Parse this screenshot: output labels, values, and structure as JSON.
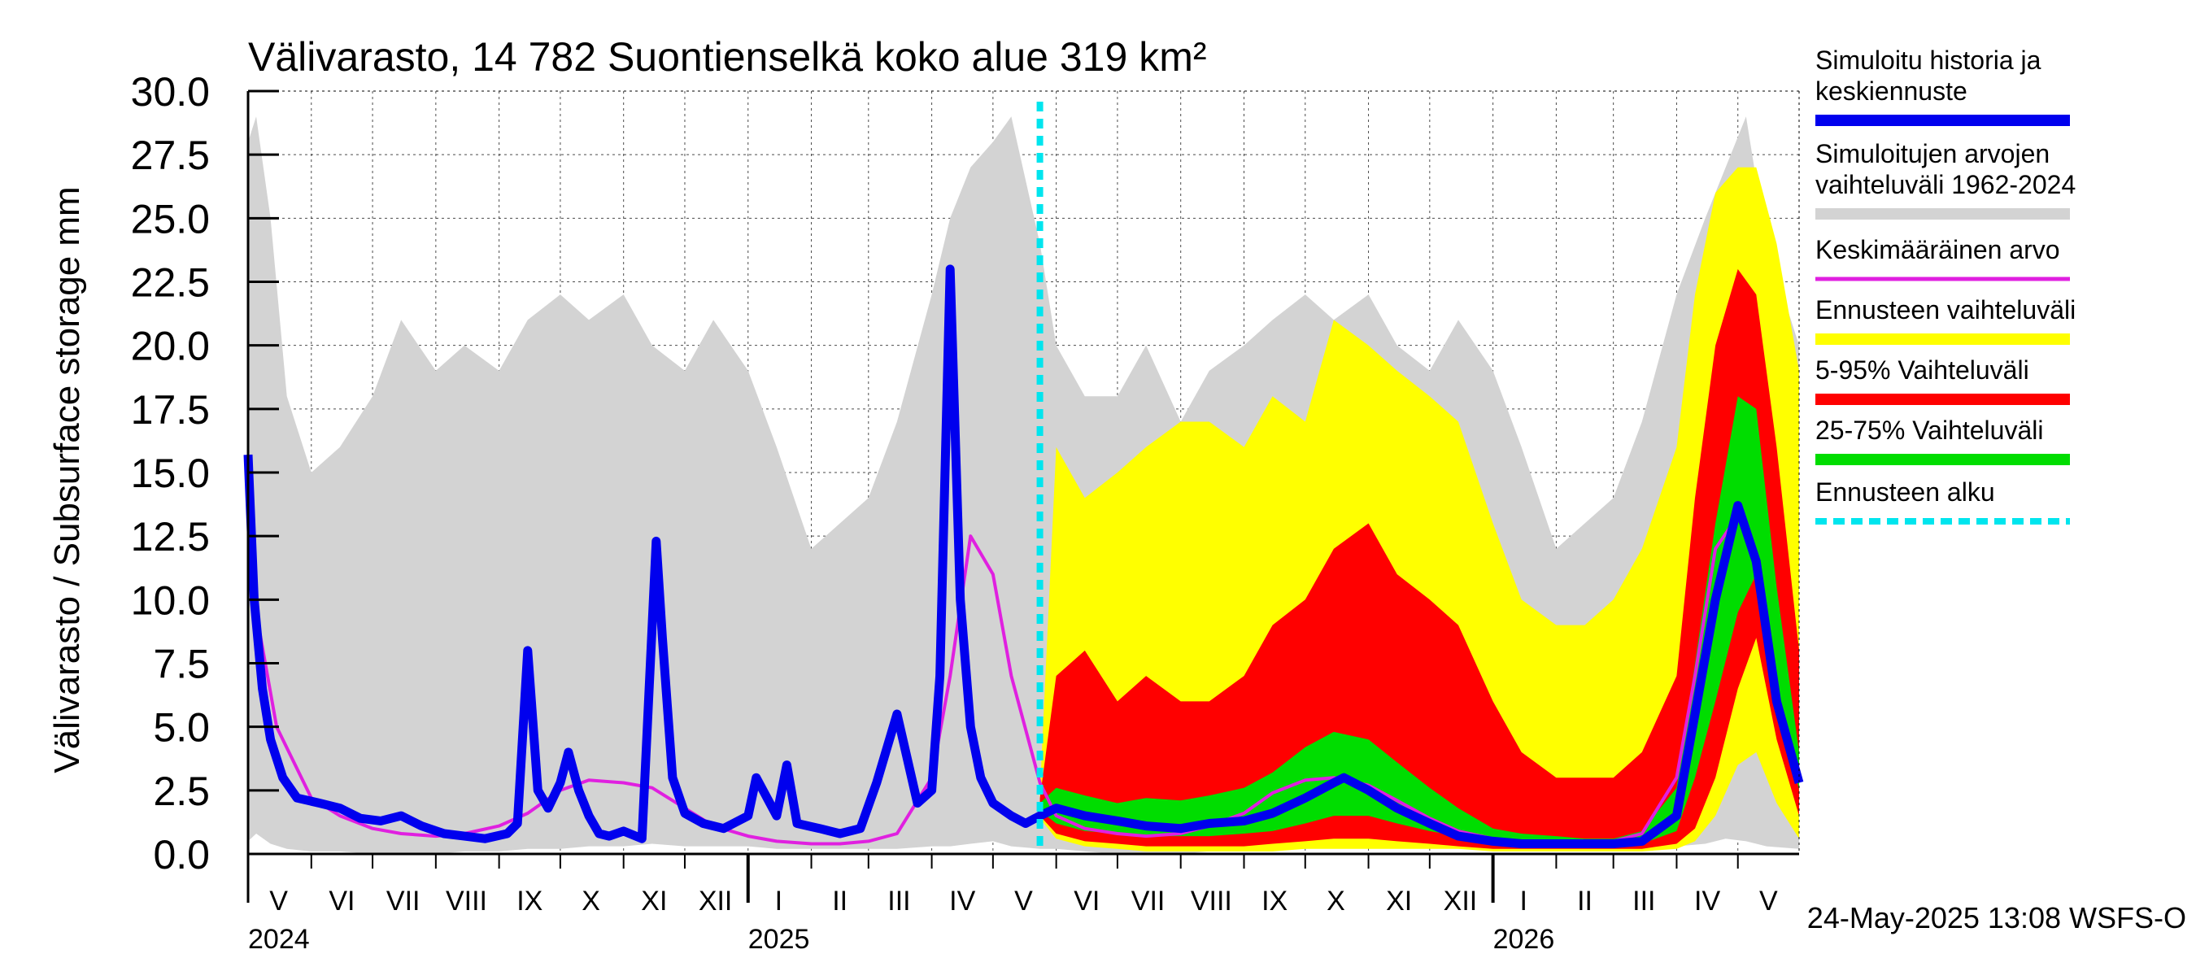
{
  "chart_data": {
    "type": "area",
    "title": "Välivarasto, 14 782 Suontienselkä koko alue 319 km²",
    "ylabel": "Välivarasto / Subsurface storage  mm",
    "xlabel": "",
    "ylim": [
      0,
      30
    ],
    "yticks": [
      "0.0",
      "2.5",
      "5.0",
      "7.5",
      "10.0",
      "12.5",
      "15.0",
      "17.5",
      "20.0",
      "22.5",
      "25.0",
      "27.5",
      "30.0"
    ],
    "grid": true,
    "legend_position": "right",
    "x_range": [
      "2024-05-01",
      "2026-05-31"
    ],
    "forecast_start": "2025-05-24",
    "month_labels": [
      {
        "date": "2024-05-16",
        "label": "V"
      },
      {
        "date": "2024-06-16",
        "label": "VI"
      },
      {
        "date": "2024-07-16",
        "label": "VII"
      },
      {
        "date": "2024-08-16",
        "label": "VIII"
      },
      {
        "date": "2024-09-16",
        "label": "IX"
      },
      {
        "date": "2024-10-16",
        "label": "X"
      },
      {
        "date": "2024-11-16",
        "label": "XI"
      },
      {
        "date": "2024-12-16",
        "label": "XII"
      },
      {
        "date": "2025-01-16",
        "label": "I"
      },
      {
        "date": "2025-02-15",
        "label": "II"
      },
      {
        "date": "2025-03-16",
        "label": "III"
      },
      {
        "date": "2025-04-16",
        "label": "IV"
      },
      {
        "date": "2025-05-16",
        "label": "V"
      },
      {
        "date": "2025-06-16",
        "label": "VI"
      },
      {
        "date": "2025-07-16",
        "label": "VII"
      },
      {
        "date": "2025-08-16",
        "label": "VIII"
      },
      {
        "date": "2025-09-16",
        "label": "IX"
      },
      {
        "date": "2025-10-16",
        "label": "X"
      },
      {
        "date": "2025-11-16",
        "label": "XI"
      },
      {
        "date": "2025-12-16",
        "label": "XII"
      },
      {
        "date": "2026-01-16",
        "label": "I"
      },
      {
        "date": "2026-02-15",
        "label": "II"
      },
      {
        "date": "2026-03-16",
        "label": "III"
      },
      {
        "date": "2026-04-16",
        "label": "IV"
      },
      {
        "date": "2026-05-16",
        "label": "V"
      }
    ],
    "month_boundaries": [
      "2024-06-01",
      "2024-07-01",
      "2024-08-01",
      "2024-09-01",
      "2024-10-01",
      "2024-11-01",
      "2024-12-01",
      "2025-01-01",
      "2025-02-01",
      "2025-03-01",
      "2025-04-01",
      "2025-05-01",
      "2025-06-01",
      "2025-07-01",
      "2025-08-01",
      "2025-09-01",
      "2025-10-01",
      "2025-11-01",
      "2025-12-01",
      "2026-01-01",
      "2026-02-01",
      "2026-03-01",
      "2026-04-01",
      "2026-05-01"
    ],
    "year_labels": [
      {
        "date": "2024-05-01",
        "label": "2024"
      },
      {
        "date": "2025-01-01",
        "label": "2025"
      },
      {
        "date": "2026-01-01",
        "label": "2026"
      }
    ],
    "series": [
      {
        "name": "Simuloitujen arvojen vaihteluväli 1962-2024",
        "kind": "band",
        "color": "#d3d3d3",
        "x": [
          "2024-05-01",
          "2024-05-05",
          "2024-05-12",
          "2024-05-20",
          "2024-06-01",
          "2024-06-15",
          "2024-07-01",
          "2024-07-15",
          "2024-08-01",
          "2024-08-15",
          "2024-09-01",
          "2024-09-15",
          "2024-10-01",
          "2024-10-15",
          "2024-11-01",
          "2024-11-15",
          "2024-12-01",
          "2024-12-15",
          "2025-01-01",
          "2025-01-15",
          "2025-02-01",
          "2025-02-15",
          "2025-03-01",
          "2025-03-15",
          "2025-04-01",
          "2025-04-10",
          "2025-04-20",
          "2025-05-01",
          "2025-05-10",
          "2025-05-24",
          "2025-06-01",
          "2025-06-15",
          "2025-07-01",
          "2025-07-15",
          "2025-08-01",
          "2025-08-15",
          "2025-09-01",
          "2025-09-15",
          "2025-10-01",
          "2025-10-15",
          "2025-11-01",
          "2025-11-15",
          "2025-12-01",
          "2025-12-15",
          "2026-01-01",
          "2026-01-15",
          "2026-02-01",
          "2026-02-15",
          "2026-03-01",
          "2026-03-15",
          "2026-04-01",
          "2026-04-15",
          "2026-04-25",
          "2026-05-05",
          "2026-05-15",
          "2026-05-31"
        ],
        "low": [
          0.5,
          0.8,
          0.4,
          0.2,
          0.1,
          0.1,
          0.0,
          0.0,
          0.0,
          0.1,
          0.1,
          0.2,
          0.2,
          0.3,
          0.3,
          0.4,
          0.3,
          0.3,
          0.3,
          0.2,
          0.2,
          0.2,
          0.2,
          0.2,
          0.3,
          0.3,
          0.4,
          0.5,
          0.3,
          0.2,
          0.2,
          0.1,
          0.0,
          0.0,
          0.0,
          0.1,
          0.1,
          0.2,
          0.2,
          0.3,
          0.3,
          0.3,
          0.3,
          0.3,
          0.3,
          0.2,
          0.2,
          0.2,
          0.2,
          0.2,
          0.3,
          0.4,
          0.6,
          0.5,
          0.3,
          0.2
        ],
        "high": [
          28,
          29,
          25,
          18,
          15,
          16,
          18,
          21,
          19,
          20,
          19,
          21,
          22,
          21,
          22,
          20,
          19,
          21,
          19,
          16,
          12,
          13,
          14,
          17,
          22,
          25,
          27,
          28,
          29,
          24,
          20,
          18,
          18,
          20,
          17,
          19,
          20,
          21,
          22,
          21,
          22,
          20,
          19,
          21,
          19,
          16,
          12,
          13,
          14,
          17,
          22,
          25,
          27,
          29,
          24,
          20
        ]
      },
      {
        "name": "Ennusteen vaihteluväli",
        "kind": "band",
        "color": "#ffff00",
        "x": [
          "2025-05-24",
          "2025-06-01",
          "2025-06-15",
          "2025-07-01",
          "2025-07-15",
          "2025-08-01",
          "2025-08-15",
          "2025-09-01",
          "2025-09-15",
          "2025-10-01",
          "2025-10-15",
          "2025-11-01",
          "2025-11-15",
          "2025-12-01",
          "2025-12-15",
          "2026-01-01",
          "2026-01-15",
          "2026-02-01",
          "2026-02-15",
          "2026-03-01",
          "2026-03-15",
          "2026-04-01",
          "2026-04-10",
          "2026-04-20",
          "2026-05-01",
          "2026-05-10",
          "2026-05-20",
          "2026-05-31"
        ],
        "low": [
          1.4,
          0.6,
          0.3,
          0.2,
          0.1,
          0.1,
          0.1,
          0.1,
          0.1,
          0.2,
          0.2,
          0.2,
          0.2,
          0.2,
          0.2,
          0.1,
          0.1,
          0.1,
          0.1,
          0.1,
          0.1,
          0.2,
          0.5,
          1.5,
          3.5,
          4.0,
          2.0,
          0.6
        ],
        "high": [
          2.4,
          16,
          14,
          15,
          16,
          17,
          17,
          16,
          18,
          17,
          21,
          20,
          19,
          18,
          17,
          13,
          10,
          9,
          9,
          10,
          12,
          16,
          22,
          26,
          27,
          27,
          24,
          19
        ]
      },
      {
        "name": "5-95% Vaihteluväli",
        "kind": "band",
        "color": "#ff0000",
        "x": [
          "2025-05-24",
          "2025-06-01",
          "2025-06-15",
          "2025-07-01",
          "2025-07-15",
          "2025-08-01",
          "2025-08-15",
          "2025-09-01",
          "2025-09-15",
          "2025-10-01",
          "2025-10-15",
          "2025-11-01",
          "2025-11-15",
          "2025-12-01",
          "2025-12-15",
          "2026-01-01",
          "2026-01-15",
          "2026-02-01",
          "2026-02-15",
          "2026-03-01",
          "2026-03-15",
          "2026-04-01",
          "2026-04-10",
          "2026-04-20",
          "2026-05-01",
          "2026-05-10",
          "2026-05-20",
          "2026-05-31"
        ],
        "low": [
          1.5,
          0.8,
          0.5,
          0.4,
          0.3,
          0.3,
          0.3,
          0.3,
          0.4,
          0.5,
          0.6,
          0.6,
          0.5,
          0.4,
          0.3,
          0.2,
          0.2,
          0.2,
          0.2,
          0.2,
          0.2,
          0.4,
          1.0,
          3.0,
          6.5,
          8.5,
          4.5,
          1.5
        ],
        "high": [
          2.2,
          7,
          8,
          6,
          7,
          6,
          6,
          7,
          9,
          10,
          12,
          13,
          11,
          10,
          9,
          6,
          4,
          3,
          3,
          3,
          4,
          7,
          14,
          20,
          23,
          22,
          16,
          8
        ]
      },
      {
        "name": "25-75% Vaihteluväli",
        "kind": "band",
        "color": "#00dd00",
        "x": [
          "2025-05-24",
          "2025-06-01",
          "2025-06-15",
          "2025-07-01",
          "2025-07-15",
          "2025-08-01",
          "2025-08-15",
          "2025-09-01",
          "2025-09-15",
          "2025-10-01",
          "2025-10-15",
          "2025-11-01",
          "2025-11-15",
          "2025-12-01",
          "2025-12-15",
          "2026-01-01",
          "2026-01-15",
          "2026-02-01",
          "2026-02-15",
          "2026-03-01",
          "2026-03-15",
          "2026-04-01",
          "2026-04-10",
          "2026-04-20",
          "2026-05-01",
          "2026-05-10",
          "2026-05-20",
          "2026-05-31"
        ],
        "low": [
          1.7,
          1.2,
          0.9,
          0.8,
          0.7,
          0.7,
          0.7,
          0.8,
          0.9,
          1.2,
          1.5,
          1.5,
          1.2,
          0.9,
          0.7,
          0.5,
          0.4,
          0.4,
          0.3,
          0.3,
          0.4,
          0.9,
          3.0,
          6.0,
          9.5,
          11.0,
          6.5,
          2.5
        ],
        "high": [
          2.0,
          2.6,
          2.3,
          2.0,
          2.2,
          2.1,
          2.3,
          2.6,
          3.2,
          4.2,
          4.8,
          4.5,
          3.6,
          2.6,
          1.8,
          1.0,
          0.8,
          0.7,
          0.6,
          0.6,
          0.9,
          2.6,
          7.5,
          13.0,
          18.0,
          17.5,
          10.5,
          4.0
        ]
      },
      {
        "name": "Keskimääräinen arvo",
        "kind": "line",
        "color": "#e020e0",
        "x": [
          "2024-05-01",
          "2024-05-05",
          "2024-05-15",
          "2024-06-01",
          "2024-06-15",
          "2024-07-01",
          "2024-07-15",
          "2024-08-01",
          "2024-08-15",
          "2024-09-01",
          "2024-09-15",
          "2024-10-01",
          "2024-10-15",
          "2024-11-01",
          "2024-11-15",
          "2024-12-01",
          "2024-12-15",
          "2025-01-01",
          "2025-01-15",
          "2025-02-01",
          "2025-02-15",
          "2025-03-01",
          "2025-03-15",
          "2025-04-01",
          "2025-04-10",
          "2025-04-20",
          "2025-05-01",
          "2025-05-10",
          "2025-05-24",
          "2025-06-01",
          "2025-06-15",
          "2025-07-01",
          "2025-07-15",
          "2025-08-01",
          "2025-08-15",
          "2025-09-01",
          "2025-09-15",
          "2025-10-01",
          "2025-10-15",
          "2025-11-01",
          "2025-11-15",
          "2025-12-01",
          "2025-12-15",
          "2026-01-01",
          "2026-01-15",
          "2026-02-01",
          "2026-02-15",
          "2026-03-01",
          "2026-03-15",
          "2026-04-01",
          "2026-04-10",
          "2026-04-20",
          "2026-05-01",
          "2026-05-10",
          "2026-05-20",
          "2026-05-31"
        ],
        "values": [
          13.3,
          9.5,
          5.0,
          2.2,
          1.5,
          1.0,
          0.8,
          0.7,
          0.8,
          1.1,
          1.6,
          2.5,
          2.9,
          2.8,
          2.6,
          1.8,
          1.1,
          0.7,
          0.5,
          0.4,
          0.4,
          0.5,
          0.8,
          3.0,
          7.0,
          12.5,
          11.0,
          7.0,
          2.8,
          1.5,
          1.0,
          0.8,
          0.7,
          0.8,
          1.1,
          1.6,
          2.4,
          2.9,
          3.0,
          2.7,
          2.1,
          1.4,
          0.9,
          0.6,
          0.5,
          0.4,
          0.4,
          0.5,
          0.8,
          3.0,
          7.0,
          12.0,
          13.3,
          11.5,
          6.0,
          3.0
        ]
      },
      {
        "name": "Simuloitu historia ja keskiennuste",
        "kind": "line",
        "color": "#0000ee",
        "x": [
          "2024-05-01",
          "2024-05-04",
          "2024-05-08",
          "2024-05-12",
          "2024-05-18",
          "2024-05-25",
          "2024-06-05",
          "2024-06-15",
          "2024-06-25",
          "2024-07-05",
          "2024-07-15",
          "2024-07-25",
          "2024-08-05",
          "2024-08-15",
          "2024-08-25",
          "2024-09-05",
          "2024-09-10",
          "2024-09-15",
          "2024-09-20",
          "2024-09-25",
          "2024-10-01",
          "2024-10-05",
          "2024-10-10",
          "2024-10-15",
          "2024-10-20",
          "2024-10-25",
          "2024-11-01",
          "2024-11-10",
          "2024-11-17",
          "2024-11-20",
          "2024-11-25",
          "2024-12-01",
          "2024-12-10",
          "2024-12-20",
          "2025-01-01",
          "2025-01-05",
          "2025-01-15",
          "2025-01-20",
          "2025-01-25",
          "2025-02-05",
          "2025-02-15",
          "2025-02-25",
          "2025-03-05",
          "2025-03-15",
          "2025-03-25",
          "2025-04-01",
          "2025-04-05",
          "2025-04-10",
          "2025-04-15",
          "2025-04-20",
          "2025-04-25",
          "2025-05-01",
          "2025-05-10",
          "2025-05-17",
          "2025-05-24",
          "2025-06-01",
          "2025-06-15",
          "2025-07-01",
          "2025-07-15",
          "2025-08-01",
          "2025-08-15",
          "2025-09-01",
          "2025-09-15",
          "2025-10-01",
          "2025-10-15",
          "2025-10-20",
          "2025-11-01",
          "2025-11-15",
          "2025-12-01",
          "2025-12-15",
          "2026-01-01",
          "2026-01-15",
          "2026-02-01",
          "2026-02-15",
          "2026-03-01",
          "2026-03-15",
          "2026-04-01",
          "2026-04-10",
          "2026-04-20",
          "2026-05-01",
          "2026-05-10",
          "2026-05-20",
          "2026-05-31"
        ],
        "values": [
          15.7,
          10.0,
          6.5,
          4.5,
          3.0,
          2.2,
          2.0,
          1.8,
          1.4,
          1.3,
          1.5,
          1.1,
          0.8,
          0.7,
          0.6,
          0.8,
          1.2,
          8.0,
          2.5,
          1.8,
          2.8,
          4.0,
          2.5,
          1.5,
          0.8,
          0.7,
          0.9,
          0.6,
          12.3,
          8.5,
          3.0,
          1.6,
          1.2,
          1.0,
          1.5,
          3.0,
          1.5,
          3.5,
          1.2,
          1.0,
          0.8,
          1.0,
          2.8,
          5.5,
          2.0,
          2.5,
          7.0,
          23.0,
          10.0,
          5.0,
          3.0,
          2.0,
          1.5,
          1.2,
          1.5,
          1.8,
          1.5,
          1.3,
          1.1,
          1.0,
          1.2,
          1.3,
          1.6,
          2.2,
          2.8,
          3.0,
          2.5,
          1.8,
          1.2,
          0.7,
          0.5,
          0.4,
          0.4,
          0.4,
          0.4,
          0.5,
          1.5,
          5.5,
          10.0,
          13.7,
          11.5,
          6.0,
          2.8
        ]
      }
    ],
    "legend": [
      {
        "label": "Simuloitu historia ja keskiennuste",
        "color": "#0000ee",
        "style": "solid"
      },
      {
        "label": "Simuloitujen arvojen vaihteluväli 1962-2024",
        "color": "#d3d3d3",
        "style": "solid"
      },
      {
        "label": "Keskimääräinen arvo",
        "color": "#e020e0",
        "style": "thin"
      },
      {
        "label": "Ennusteen vaihteluväli",
        "color": "#ffff00",
        "style": "solid"
      },
      {
        "label": "5-95% Vaihteluväli",
        "color": "#ff0000",
        "style": "solid"
      },
      {
        "label": "25-75% Vaihteluväli",
        "color": "#00dd00",
        "style": "solid"
      },
      {
        "label": "Ennusteen alku",
        "color": "#00e5ee",
        "style": "dashed"
      }
    ],
    "footer": "24-May-2025 13:08 WSFS-O"
  }
}
